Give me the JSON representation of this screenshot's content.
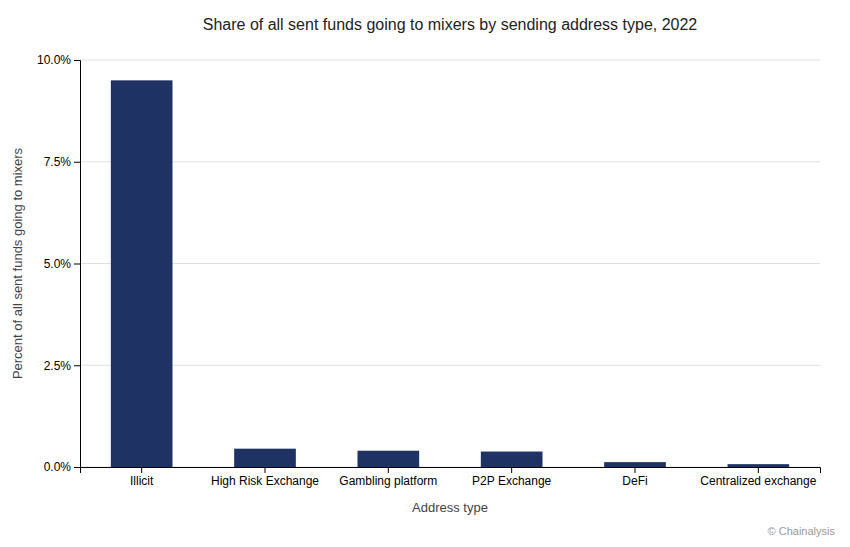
{
  "chart_data": {
    "type": "bar",
    "title": "Share of all sent funds going to mixers by sending address type, 2022",
    "categories": [
      "Illicit",
      "High Risk Exchange",
      "Gambling platform",
      "P2P Exchange",
      "DeFi",
      "Centralized exchange"
    ],
    "values": [
      0.095,
      0.0045,
      0.004,
      0.0038,
      0.0012,
      0.0007
    ],
    "color": "#1e3264",
    "xlabel": "Address type",
    "ylabel": "Percent of all sent funds going to mixers",
    "ylim": [
      0,
      0.1
    ],
    "yticks": [
      {
        "value": 0.0,
        "label": "0.0%"
      },
      {
        "value": 0.025,
        "label": "2.5%"
      },
      {
        "value": 0.05,
        "label": "5.0%"
      },
      {
        "value": 0.075,
        "label": "7.5%"
      },
      {
        "value": 0.1,
        "label": "10.0%"
      }
    ],
    "grid": true,
    "annotations": [
      "© Chainalysis"
    ]
  }
}
